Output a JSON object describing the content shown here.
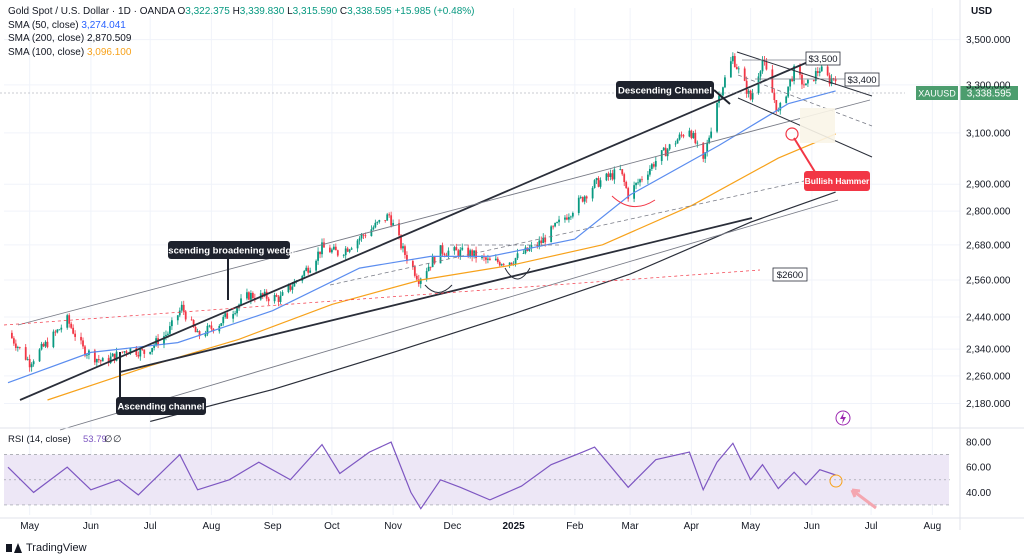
{
  "header": {
    "symbol_title": "Gold Spot / U.S. Dollar · 1D · OANDA",
    "open_label": "O",
    "open": "3,322.375",
    "high_label": "H",
    "high": "3,339.830",
    "low_label": "L",
    "low": "3,315.590",
    "close_label": "C",
    "close": "3,338.595",
    "change": "+15.985 (+0.48%)",
    "sma50_label": "SMA (50, close)",
    "sma50_value": "3,274.041",
    "sma200_label": "SMA (200, close)",
    "sma200_value": "2,870.509",
    "sma100_label": "SMA (100, close)",
    "sma100_value": "3,096.100"
  },
  "currency": "USD",
  "branding": "TradingView",
  "colors": {
    "up": "#089981",
    "down": "#f23645",
    "sma50": "#5b8def",
    "sma100": "#f7a21b",
    "sma200": "#2a2e39",
    "rsi": "#7e57c2",
    "rsi_band": "#ede7f6",
    "price_tag": "#4c9d6e"
  },
  "chart_data": [
    {
      "type": "candlestick",
      "title": "",
      "x_range": [
        "2024-04-18",
        "2025-08-15"
      ],
      "ylim": [
        2120,
        3600
      ],
      "y_scale": "log",
      "y_ticks": [
        "3,500.000",
        "3,300.000",
        "3,100.000",
        "2,900.000",
        "2,800.000",
        "2,680.000",
        "2,560.000",
        "2,440.000",
        "2,340.000",
        "2,260.000",
        "2,180.000"
      ],
      "x_ticks": [
        "May",
        "Jun",
        "Jul",
        "Aug",
        "Sep",
        "Oct",
        "Nov",
        "Dec",
        "2025",
        "Feb",
        "Mar",
        "Apr",
        "May",
        "Jun",
        "Jul",
        "Aug"
      ],
      "close_path": [
        [
          "2024-04-20",
          2390
        ],
        [
          "2024-05-01",
          2300
        ],
        [
          "2024-05-10",
          2360
        ],
        [
          "2024-05-20",
          2430
        ],
        [
          "2024-05-28",
          2340
        ],
        [
          "2024-06-07",
          2300
        ],
        [
          "2024-06-20",
          2340
        ],
        [
          "2024-06-28",
          2330
        ],
        [
          "2024-07-10",
          2390
        ],
        [
          "2024-07-17",
          2470
        ],
        [
          "2024-07-25",
          2380
        ],
        [
          "2024-08-05",
          2420
        ],
        [
          "2024-08-20",
          2510
        ],
        [
          "2024-09-05",
          2500
        ],
        [
          "2024-09-20",
          2610
        ],
        [
          "2024-09-26",
          2670
        ],
        [
          "2024-10-05",
          2650
        ],
        [
          "2024-10-18",
          2720
        ],
        [
          "2024-10-30",
          2785
        ],
        [
          "2024-11-06",
          2660
        ],
        [
          "2024-11-14",
          2565
        ],
        [
          "2024-11-25",
          2660
        ],
        [
          "2024-12-10",
          2650
        ],
        [
          "2024-12-20",
          2620
        ],
        [
          "2024-12-31",
          2625
        ],
        [
          "2025-01-15",
          2690
        ],
        [
          "2025-01-30",
          2800
        ],
        [
          "2025-02-11",
          2900
        ],
        [
          "2025-02-24",
          2950
        ],
        [
          "2025-02-28",
          2860
        ],
        [
          "2025-03-14",
          2990
        ],
        [
          "2025-03-31",
          3120
        ],
        [
          "2025-04-07",
          2980
        ],
        [
          "2025-04-14",
          3230
        ],
        [
          "2025-04-22",
          3420
        ],
        [
          "2025-05-01",
          3240
        ],
        [
          "2025-05-07",
          3410
        ],
        [
          "2025-05-15",
          3180
        ],
        [
          "2025-05-23",
          3360
        ],
        [
          "2025-05-29",
          3290
        ],
        [
          "2025-06-05",
          3370
        ],
        [
          "2025-06-10",
          3320
        ],
        [
          "2025-06-13",
          3338.595
        ]
      ],
      "series": [
        {
          "name": "SMA (50, close)",
          "points": [
            [
              "2024-04-20",
              2240
            ],
            [
              "2024-06-01",
              2330
            ],
            [
              "2024-07-15",
              2360
            ],
            [
              "2024-09-01",
              2460
            ],
            [
              "2024-10-15",
              2600
            ],
            [
              "2024-11-20",
              2640
            ],
            [
              "2024-12-20",
              2640
            ],
            [
              "2025-02-01",
              2700
            ],
            [
              "2025-03-01",
              2860
            ],
            [
              "2025-04-15",
              3050
            ],
            [
              "2025-05-20",
              3220
            ],
            [
              "2025-06-13",
              3274.041
            ]
          ]
        },
        {
          "name": "SMA (100, close)",
          "points": [
            [
              "2024-05-10",
              2190
            ],
            [
              "2024-07-01",
              2290
            ],
            [
              "2024-08-15",
              2370
            ],
            [
              "2024-10-01",
              2480
            ],
            [
              "2024-11-15",
              2560
            ],
            [
              "2024-12-31",
              2610
            ],
            [
              "2025-02-15",
              2680
            ],
            [
              "2025-04-01",
              2820
            ],
            [
              "2025-05-15",
              3000
            ],
            [
              "2025-06-13",
              3096.1
            ]
          ]
        },
        {
          "name": "SMA (200, close)",
          "points": [
            [
              "2024-07-01",
              2130
            ],
            [
              "2024-09-01",
              2220
            ],
            [
              "2024-11-01",
              2330
            ],
            [
              "2025-01-01",
              2450
            ],
            [
              "2025-03-01",
              2580
            ],
            [
              "2025-05-01",
              2760
            ],
            [
              "2025-06-13",
              2870.509
            ]
          ]
        }
      ],
      "annotations": [
        {
          "text": "Descending Channel",
          "style": "dark"
        },
        {
          "text": "Ascending broadening wedge",
          "style": "dark"
        },
        {
          "text": "Ascending channel",
          "style": "dark"
        },
        {
          "text": "Bullish Hammer",
          "style": "red"
        },
        {
          "text": "$3,500",
          "style": "box"
        },
        {
          "text": "$3,400",
          "style": "box"
        },
        {
          "text": "$2600",
          "style": "box"
        }
      ],
      "price_tag": {
        "symbol": "XAUUSD",
        "value": "3,338.595"
      }
    },
    {
      "type": "line",
      "title": "RSI (14, close)",
      "value_label": "53.79",
      "extra_labels": [
        "∅",
        "∅"
      ],
      "ylim": [
        22,
        88
      ],
      "y_ticks": [
        "80.00",
        "60.00",
        "40.00"
      ],
      "bands": [
        30,
        70
      ],
      "points": [
        [
          "2024-04-20",
          60
        ],
        [
          "2024-05-03",
          40
        ],
        [
          "2024-05-20",
          60
        ],
        [
          "2024-06-01",
          42
        ],
        [
          "2024-06-15",
          50
        ],
        [
          "2024-06-25",
          38
        ],
        [
          "2024-07-16",
          70
        ],
        [
          "2024-07-25",
          42
        ],
        [
          "2024-08-10",
          50
        ],
        [
          "2024-08-25",
          64
        ],
        [
          "2024-09-10",
          50
        ],
        [
          "2024-09-26",
          78
        ],
        [
          "2024-10-05",
          55
        ],
        [
          "2024-10-20",
          72
        ],
        [
          "2024-10-31",
          80
        ],
        [
          "2024-11-10",
          40
        ],
        [
          "2024-11-15",
          27
        ],
        [
          "2024-11-25",
          50
        ],
        [
          "2024-12-05",
          44
        ],
        [
          "2024-12-20",
          34
        ],
        [
          "2025-01-05",
          45
        ],
        [
          "2025-01-20",
          62
        ],
        [
          "2025-02-05",
          72
        ],
        [
          "2025-02-11",
          76
        ],
        [
          "2025-02-28",
          44
        ],
        [
          "2025-03-14",
          66
        ],
        [
          "2025-03-31",
          72
        ],
        [
          "2025-04-07",
          42
        ],
        [
          "2025-04-14",
          64
        ],
        [
          "2025-04-22",
          79
        ],
        [
          "2025-05-01",
          50
        ],
        [
          "2025-05-07",
          62
        ],
        [
          "2025-05-15",
          43
        ],
        [
          "2025-05-23",
          56
        ],
        [
          "2025-05-29",
          46
        ],
        [
          "2025-06-05",
          58
        ],
        [
          "2025-06-13",
          53.79
        ]
      ]
    }
  ]
}
